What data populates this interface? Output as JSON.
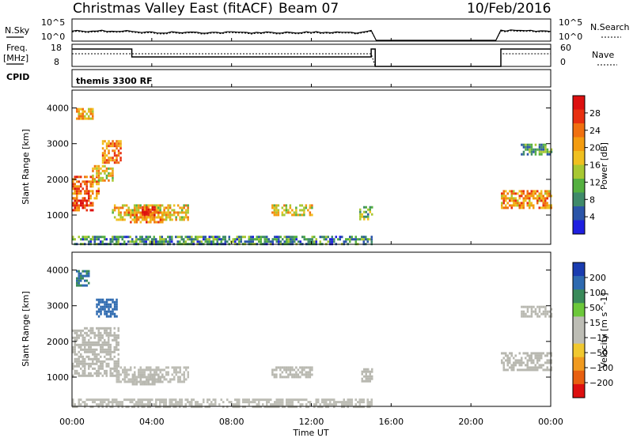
{
  "header": {
    "station": "Christmas Valley East (fitACF)",
    "beam": "Beam 07",
    "date": "10/Feb/2016"
  },
  "strips": {
    "nsky": {
      "label": "N.Sky",
      "left_ticks": [
        "10^5",
        "10^0"
      ],
      "right_label": "N.Search",
      "right_ticks": [
        "10^5",
        "10^0"
      ]
    },
    "freq": {
      "label_line1": "Freq.",
      "label_line2": "[MHz]",
      "left_ticks": [
        "18",
        "8"
      ],
      "right_label": "Nave",
      "right_ticks": [
        "60",
        "0"
      ]
    },
    "cpid": {
      "label": "CPID",
      "program": "themis 3300 RF"
    }
  },
  "colors": {
    "power_scale": [
      "#1f1fe0",
      "#2b55a8",
      "#3f8a6a",
      "#55b040",
      "#a8c832",
      "#f0c020",
      "#f39c10",
      "#f07010",
      "#e83010",
      "#dd1010"
    ],
    "velocity_scale": [
      "#1a3cb0",
      "#2e6ab0",
      "#3a8a5a",
      "#6cc83a",
      "#bdbdb5",
      "#bdbdb5",
      "#f0c830",
      "#f09a20",
      "#e86010",
      "#dd1010"
    ],
    "ground_scatter": "#b8b8b0"
  },
  "chart_data": [
    {
      "type": "heatmap",
      "name": "power",
      "ylabel": "Slant Range [km]",
      "ylim": [
        180,
        4500
      ],
      "xlim_hours": [
        0,
        24
      ],
      "yticks": [
        "1000",
        "2000",
        "3000",
        "4000"
      ],
      "colorbar_label": "Power [dB]",
      "colorbar_ticks": [
        "4",
        "8",
        "12",
        "16",
        "20",
        "24",
        "28"
      ],
      "colorbar_range": [
        0,
        30
      ],
      "regions": [
        {
          "t": [
            0.0,
            1.0
          ],
          "r": [
            1150,
            1500
          ],
          "v": 25
        },
        {
          "t": [
            0.0,
            1.3
          ],
          "r": [
            1500,
            2100
          ],
          "v": 22
        },
        {
          "t": [
            0.2,
            1.0
          ],
          "r": [
            3700,
            4000
          ],
          "v": 18
        },
        {
          "t": [
            1.5,
            2.4
          ],
          "r": [
            2500,
            3100
          ],
          "v": 21
        },
        {
          "t": [
            1.0,
            2.0
          ],
          "r": [
            2000,
            2400
          ],
          "v": 17
        },
        {
          "t": [
            2.0,
            5.8
          ],
          "r": [
            850,
            1300
          ],
          "v": 17
        },
        {
          "t": [
            2.8,
            4.5
          ],
          "r": [
            800,
            1100
          ],
          "v": 22
        },
        {
          "t": [
            3.5,
            4.2
          ],
          "r": [
            1000,
            1250
          ],
          "v": 26
        },
        {
          "t": [
            10.0,
            12.0
          ],
          "r": [
            1000,
            1300
          ],
          "v": 16
        },
        {
          "t": [
            14.4,
            15.0
          ],
          "r": [
            900,
            1250
          ],
          "v": 11
        },
        {
          "t": [
            21.5,
            24.0
          ],
          "r": [
            1200,
            1700
          ],
          "v": 20
        },
        {
          "t": [
            22.5,
            24.0
          ],
          "r": [
            2700,
            3000
          ],
          "v": 9
        },
        {
          "t": [
            0.0,
            15.0
          ],
          "r": [
            200,
            420
          ],
          "v": 8
        }
      ]
    },
    {
      "type": "heatmap",
      "name": "velocity",
      "ylabel": "Slant Range [km]",
      "ylim": [
        180,
        4500
      ],
      "xlim_hours": [
        0,
        24
      ],
      "yticks": [
        "1000",
        "2000",
        "3000",
        "4000"
      ],
      "colorbar_label": "Velocity [m s^-1]",
      "colorbar_ticks": [
        "200",
        "100",
        "50",
        "15",
        "−15",
        "−50",
        "−100",
        "−200"
      ],
      "colorbar_range": [
        -250,
        250
      ],
      "regions": [
        {
          "t": [
            0.0,
            2.3
          ],
          "r": [
            1050,
            2400
          ],
          "v": 0,
          "gs": true
        },
        {
          "t": [
            2.2,
            5.8
          ],
          "r": [
            900,
            1300
          ],
          "v": 30
        },
        {
          "t": [
            3.0,
            4.5
          ],
          "r": [
            800,
            1100
          ],
          "v": 0,
          "gs": true
        },
        {
          "t": [
            0.2,
            0.8
          ],
          "r": [
            3600,
            4000
          ],
          "v": 150
        },
        {
          "t": [
            1.2,
            2.2
          ],
          "r": [
            2700,
            3200
          ],
          "v": 180
        },
        {
          "t": [
            10.0,
            12.0
          ],
          "r": [
            1000,
            1300
          ],
          "v": 0,
          "gs": true
        },
        {
          "t": [
            14.5,
            15.0
          ],
          "r": [
            900,
            1250
          ],
          "v": 0,
          "gs": true
        },
        {
          "t": [
            21.5,
            24.0
          ],
          "r": [
            1200,
            1700
          ],
          "v": 0,
          "gs": true
        },
        {
          "t": [
            22.5,
            24.0
          ],
          "r": [
            2700,
            3000
          ],
          "v": 0,
          "gs": true
        },
        {
          "t": [
            0.0,
            15.0
          ],
          "r": [
            200,
            400
          ],
          "v": -30
        }
      ]
    }
  ],
  "axis": {
    "xlabel": "Time UT",
    "xticks": [
      "00:00",
      "04:00",
      "08:00",
      "12:00",
      "16:00",
      "20:00",
      "00:00"
    ]
  }
}
